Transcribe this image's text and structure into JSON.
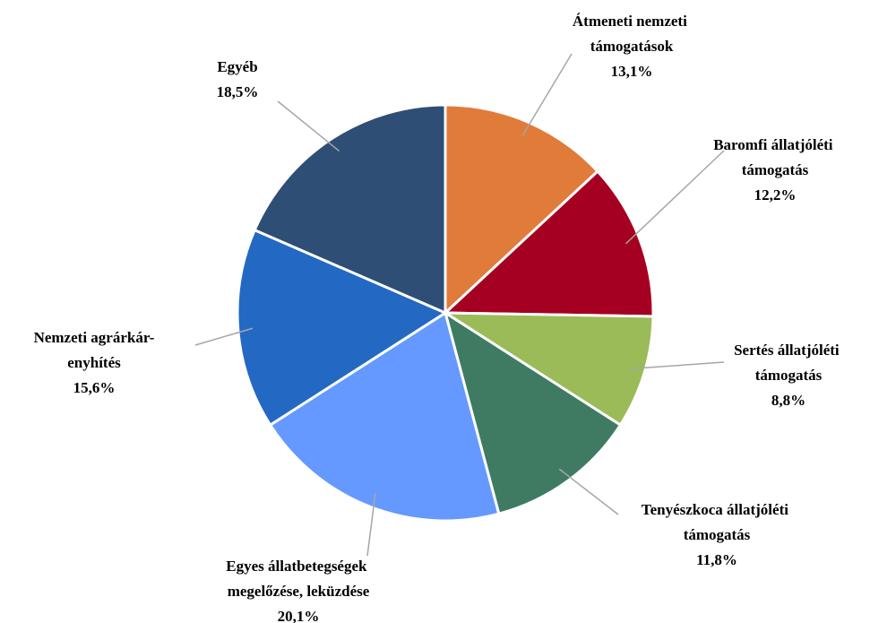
{
  "chart_data": {
    "type": "pie",
    "categories": [
      "Átmeneti nemzeti támogatások",
      "Baromfi állatjóléti támogatás",
      "Sertés állatjóléti támogatás",
      "Tenyészkoca állatjóléti támogatás",
      "Egyes állatbetegségek megelőzése, leküzdése",
      "Nemzeti agrárkár-enyhítés",
      "Egyéb"
    ],
    "values": [
      13.1,
      12.2,
      8.8,
      11.8,
      20.1,
      15.6,
      18.5
    ],
    "value_labels": [
      "13,1%",
      "12,2%",
      "8,8%",
      "11,8%",
      "20,1%",
      "15,6%",
      "18,5%"
    ],
    "colors": [
      "#e07b39",
      "#a50021",
      "#9bbb59",
      "#3f7b63",
      "#6699ff",
      "#2369c4",
      "#2f4e75"
    ]
  }
}
